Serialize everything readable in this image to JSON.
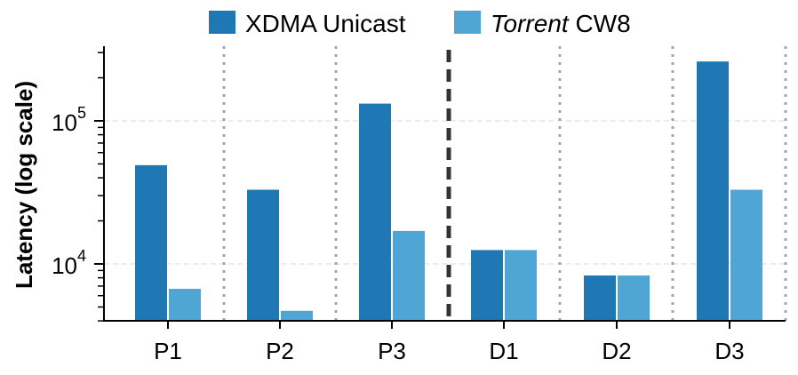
{
  "chart_data": {
    "type": "bar",
    "categories": [
      "P1",
      "P2",
      "P3",
      "D1",
      "D2",
      "D3"
    ],
    "series": [
      {
        "name": "XDMA Unicast",
        "name_italic": "",
        "name_rest": "XDMA Unicast",
        "color": "#1f77b4",
        "values": [
          49000,
          33000,
          132000,
          12500,
          8300,
          260000
        ]
      },
      {
        "name": "Torrent CW8",
        "name_italic": "Torrent",
        "name_rest": " CW8",
        "color": "#4fa6d4",
        "values": [
          6700,
          4700,
          17000,
          12500,
          8300,
          33000
        ]
      }
    ],
    "xlabel": "",
    "ylabel": "Latency (log scale)",
    "yscale": "log",
    "ylim": [
      4000,
      320000
    ],
    "ytick_labels": [
      {
        "value": 10000,
        "base": "10",
        "exp": "4"
      },
      {
        "value": 100000,
        "base": "10",
        "exp": "5"
      }
    ],
    "grid": "horizontal dashed at major ticks",
    "separators": "dotted lines between groups; dashed line between P3 and D1",
    "legend": "top-center"
  }
}
